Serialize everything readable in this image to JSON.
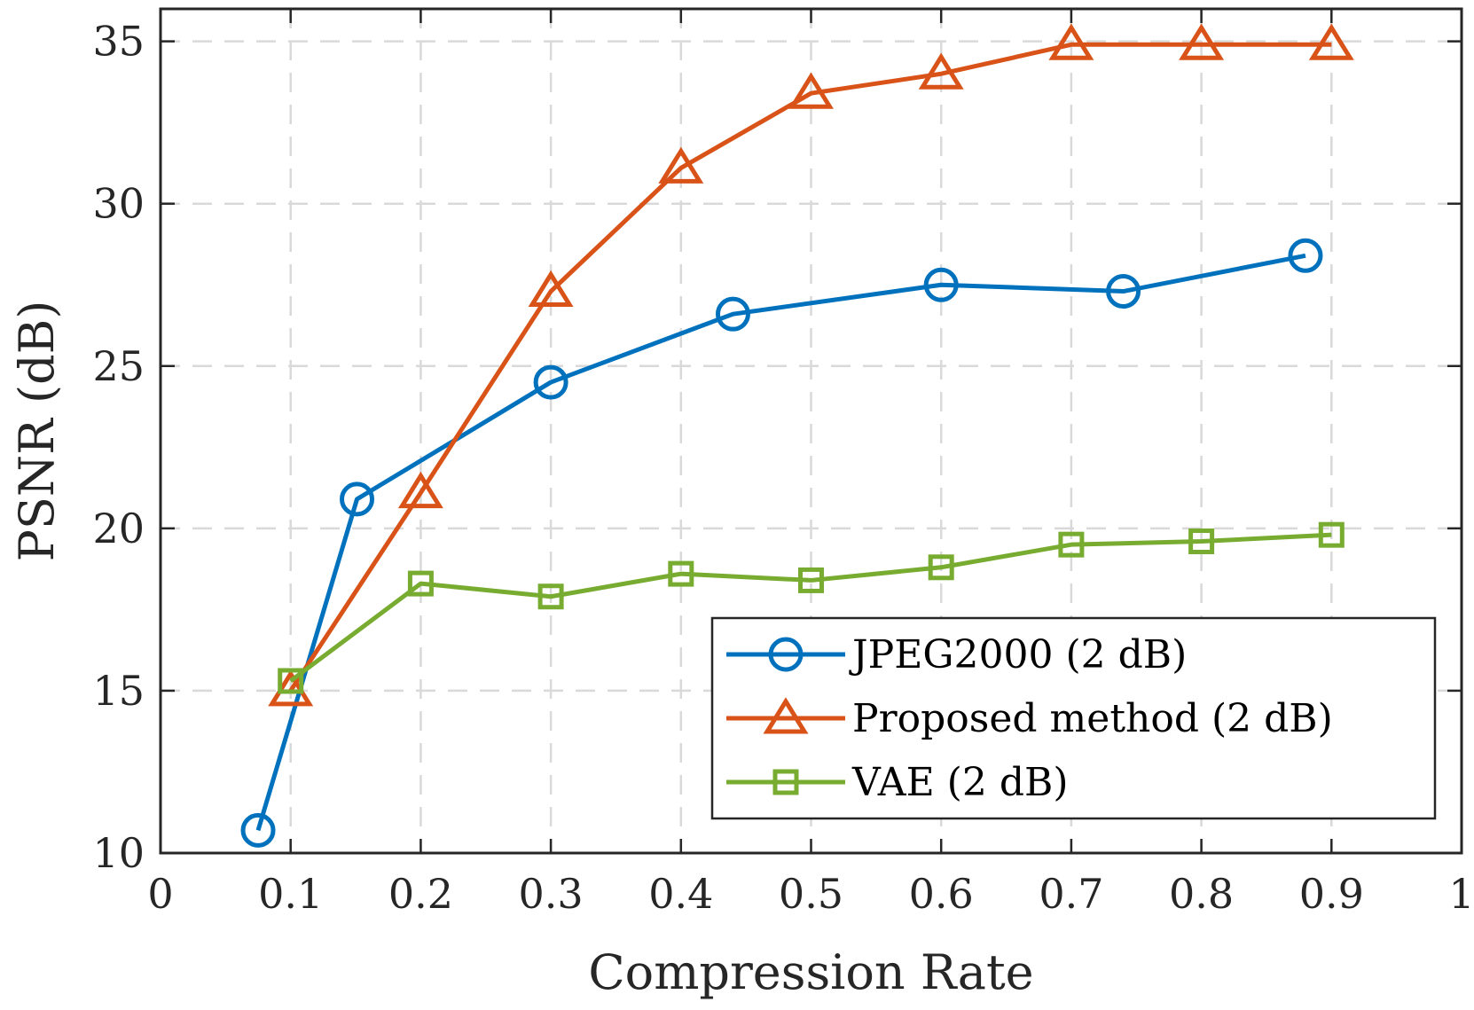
{
  "chart_data": {
    "type": "line",
    "title": "",
    "xlabel": "Compression Rate",
    "ylabel": "PSNR (dB)",
    "xlim": [
      0,
      1
    ],
    "ylim": [
      10,
      36
    ],
    "xticks": [
      0,
      0.1,
      0.2,
      0.3,
      0.4,
      0.5,
      0.6,
      0.7,
      0.8,
      0.9,
      1
    ],
    "xtick_labels": [
      "0",
      "0.1",
      "0.2",
      "0.3",
      "0.4",
      "0.5",
      "0.6",
      "0.7",
      "0.8",
      "0.9",
      "1"
    ],
    "yticks": [
      10,
      15,
      20,
      25,
      30,
      35
    ],
    "ytick_labels": [
      "10",
      "15",
      "20",
      "25",
      "30",
      "35"
    ],
    "grid": true,
    "legend_position": "bottom-right",
    "series": [
      {
        "name": "JPEG2000 (2 dB)",
        "color": "#0072BD",
        "marker": "circle",
        "x": [
          0.075,
          0.151,
          0.3,
          0.44,
          0.6,
          0.74,
          0.88
        ],
        "y": [
          10.7,
          20.9,
          24.5,
          26.6,
          27.5,
          27.3,
          28.4
        ]
      },
      {
        "name": "Proposed method (2 dB)",
        "color": "#D95319",
        "marker": "triangle",
        "x": [
          0.1,
          0.2,
          0.3,
          0.4,
          0.5,
          0.6,
          0.7,
          0.8,
          0.9
        ],
        "y": [
          15.0,
          21.1,
          27.3,
          31.1,
          33.4,
          34.0,
          34.9,
          34.9,
          34.9
        ]
      },
      {
        "name": "VAE (2 dB)",
        "color": "#77AC30",
        "marker": "square",
        "x": [
          0.1,
          0.2,
          0.3,
          0.4,
          0.5,
          0.6,
          0.7,
          0.8,
          0.9
        ],
        "y": [
          15.3,
          18.3,
          17.9,
          18.6,
          18.4,
          18.8,
          19.5,
          19.6,
          19.8
        ]
      }
    ]
  }
}
